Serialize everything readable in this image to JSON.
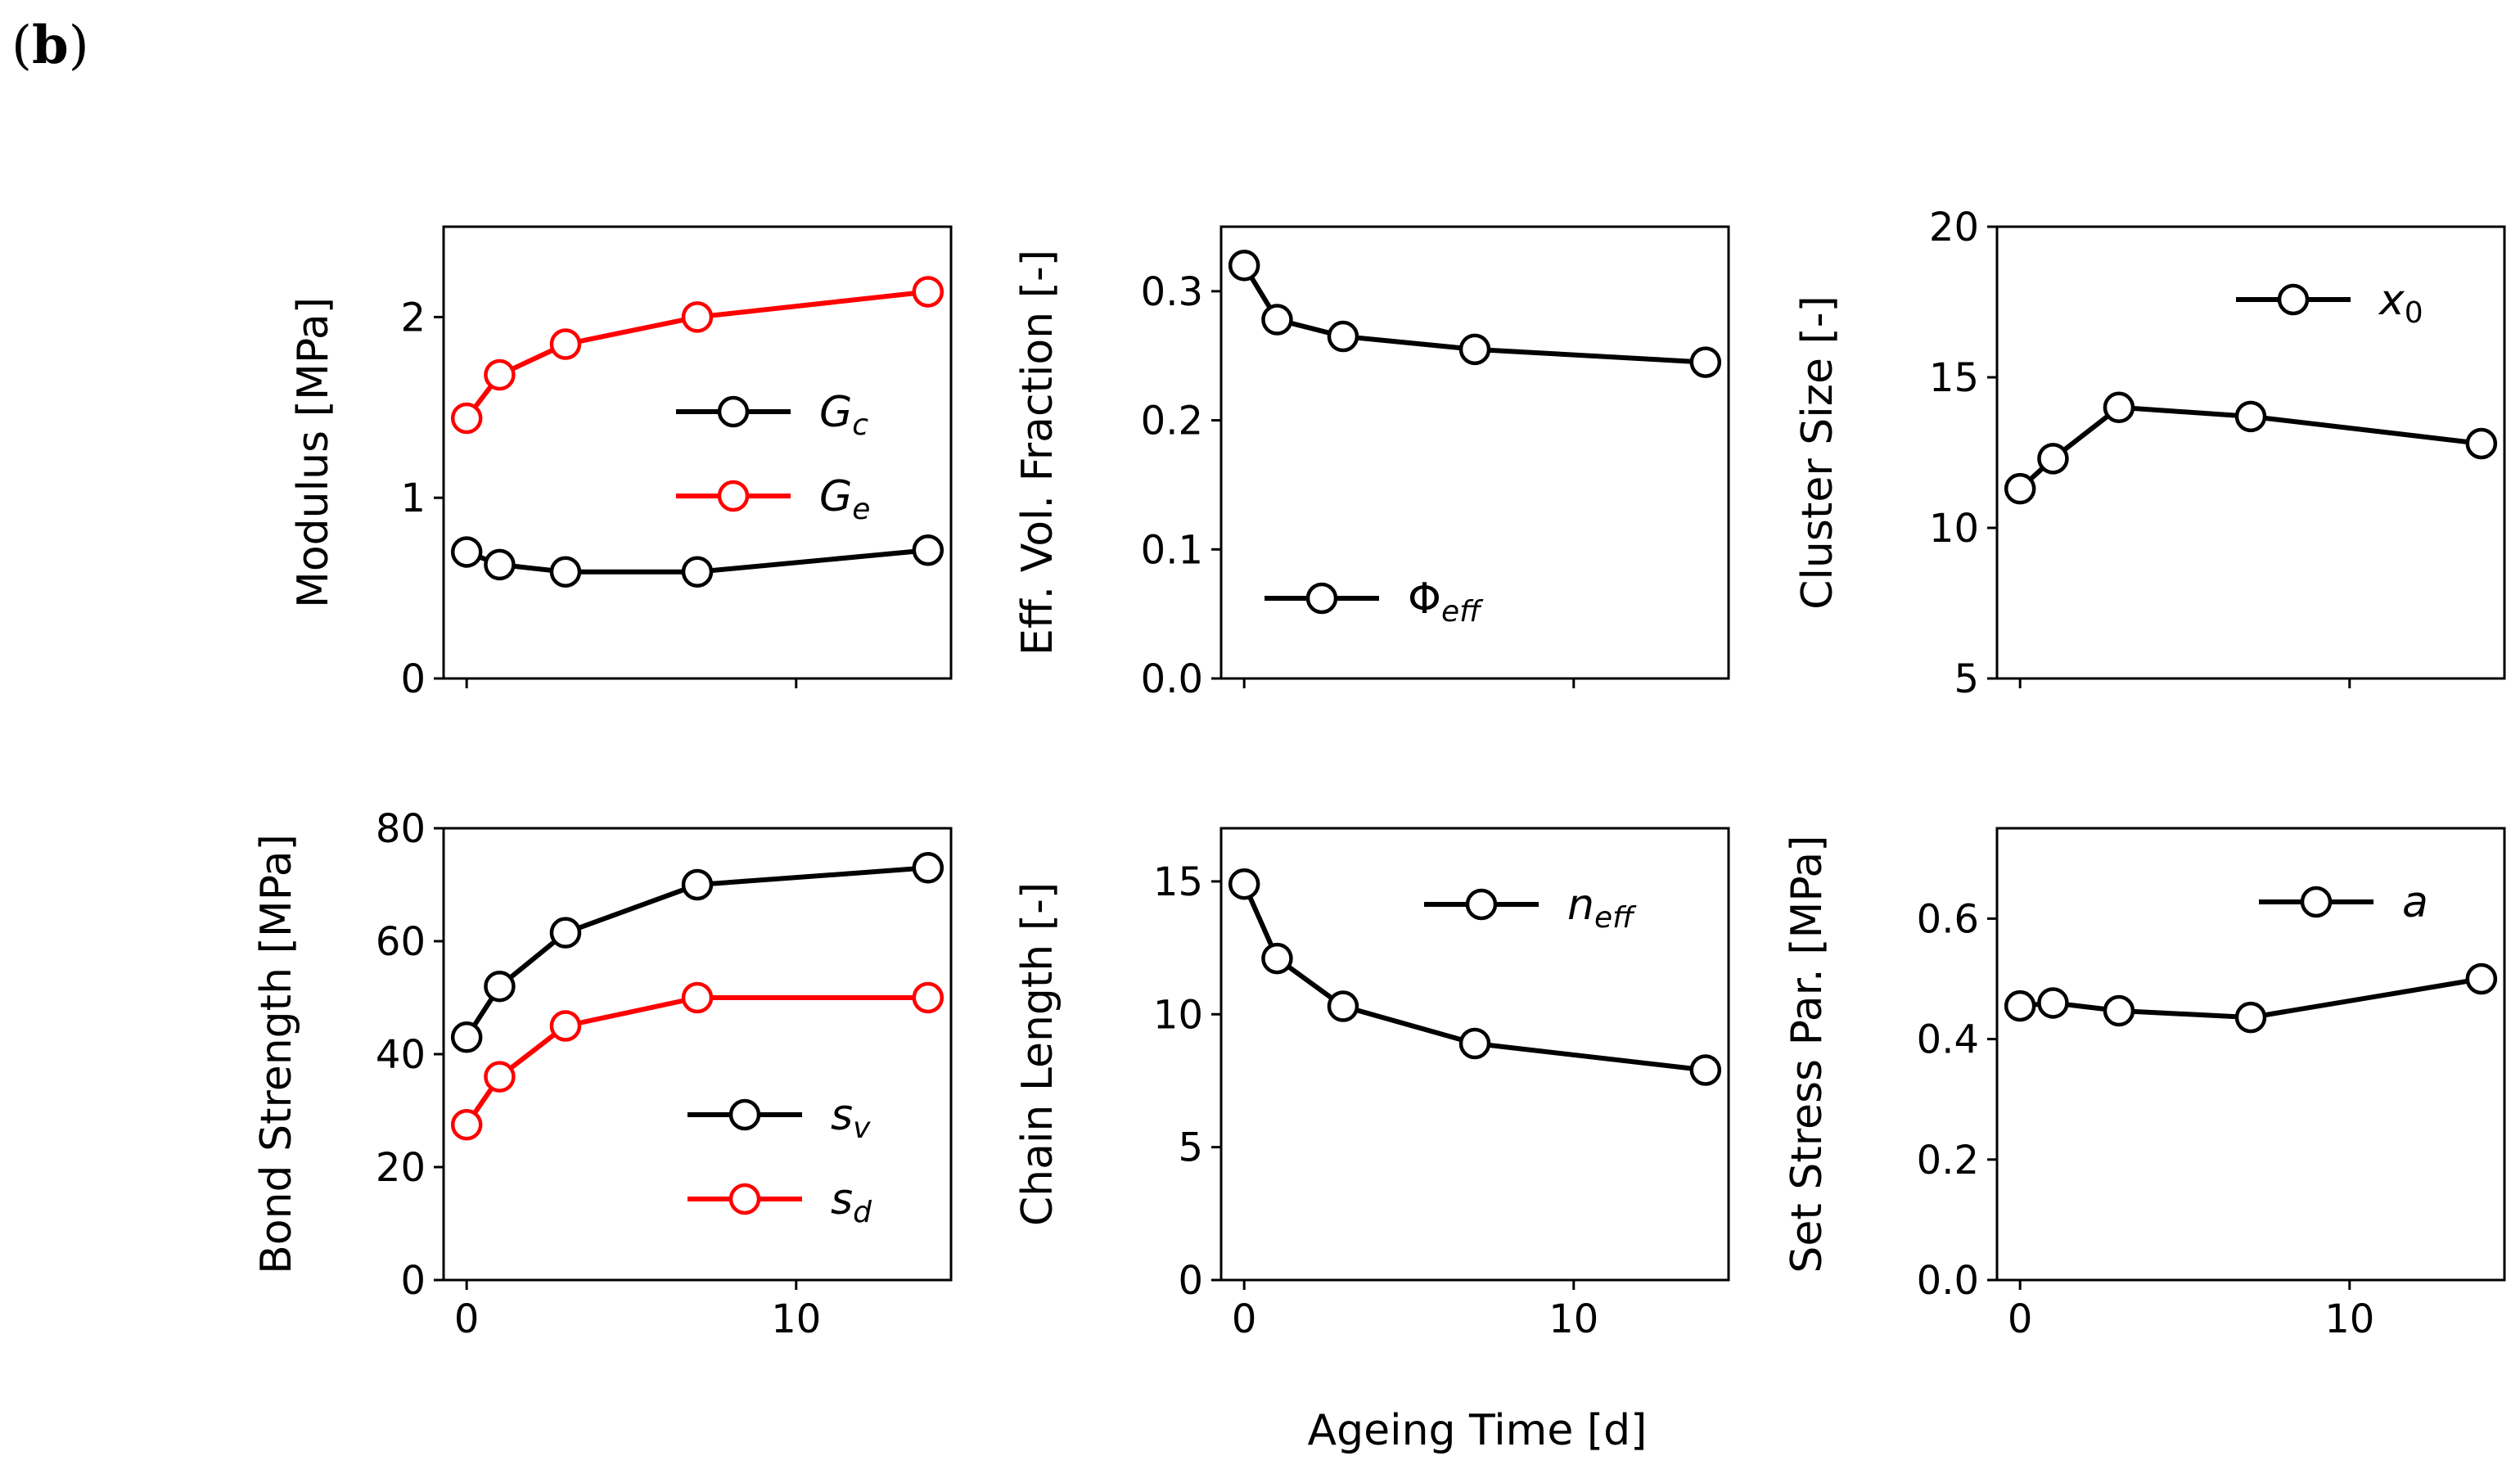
{
  "panel_label": {
    "open": "(",
    "letter": "b",
    "close": ")"
  },
  "shared_xlabel": "Ageing Time [d]",
  "chart_data": [
    {
      "type": "line",
      "ylabel": "Modulus [MPa]",
      "xlim": [
        -0.7,
        14.7
      ],
      "ylim": [
        0,
        2.5
      ],
      "yticks": [
        0,
        1,
        2
      ],
      "ytick_labels": [
        "0",
        "1",
        "2"
      ],
      "xticks": [
        0,
        10
      ],
      "xtick_labels": [],
      "legend_position": "center-right",
      "series": [
        {
          "name": "Gc",
          "symbol": "G",
          "sub": "c",
          "color": "#000000",
          "x": [
            0,
            1,
            3,
            7,
            14
          ],
          "y": [
            0.7,
            0.63,
            0.59,
            0.59,
            0.71
          ]
        },
        {
          "name": "Ge",
          "symbol": "G",
          "sub": "e",
          "color": "#ff0000",
          "x": [
            0,
            1,
            3,
            7,
            14
          ],
          "y": [
            1.44,
            1.68,
            1.85,
            2.0,
            2.14
          ]
        }
      ]
    },
    {
      "type": "line",
      "ylabel": "Eff. Vol. Fraction [-]",
      "xlim": [
        -0.7,
        14.7
      ],
      "ylim": [
        0,
        0.35
      ],
      "yticks": [
        0,
        0.1,
        0.2,
        0.3
      ],
      "ytick_labels": [
        "0.0",
        "0.1",
        "0.2",
        "0.3"
      ],
      "xticks": [
        0,
        10
      ],
      "xtick_labels": [],
      "legend_position": "lower-left",
      "series": [
        {
          "name": "Φeff",
          "symbol": "Φ",
          "sub": "eff",
          "color": "#000000",
          "x": [
            0,
            1,
            3,
            7,
            14
          ],
          "y": [
            0.32,
            0.278,
            0.265,
            0.255,
            0.245
          ]
        }
      ]
    },
    {
      "type": "line",
      "ylabel": "Cluster Size [-]",
      "xlim": [
        -0.7,
        14.7
      ],
      "ylim": [
        5,
        20
      ],
      "yticks": [
        5,
        10,
        15,
        20
      ],
      "ytick_labels": [
        "5",
        "10",
        "15",
        "20"
      ],
      "xticks": [
        0,
        10
      ],
      "xtick_labels": [],
      "legend_position": "upper-right",
      "series": [
        {
          "name": "x0",
          "symbol": "x",
          "sub": "0",
          "color": "#000000",
          "x": [
            0,
            1,
            3,
            7,
            14
          ],
          "y": [
            11.3,
            12.3,
            14.0,
            13.7,
            12.8
          ]
        }
      ]
    },
    {
      "type": "line",
      "ylabel": "Bond Strength [MPa]",
      "xlim": [
        -0.7,
        14.7
      ],
      "ylim": [
        0,
        80
      ],
      "yticks": [
        0,
        20,
        40,
        60,
        80
      ],
      "ytick_labels": [
        "0",
        "20",
        "40",
        "60",
        "80"
      ],
      "xticks": [
        0,
        10
      ],
      "xtick_labels": [
        "0",
        "10"
      ],
      "legend_position": "lower-right",
      "series": [
        {
          "name": "sv",
          "symbol": "s",
          "sub": "v",
          "color": "#000000",
          "x": [
            0,
            1,
            3,
            7,
            14
          ],
          "y": [
            43,
            52,
            61.5,
            70,
            73
          ]
        },
        {
          "name": "sd",
          "symbol": "s",
          "sub": "d",
          "color": "#ff0000",
          "x": [
            0,
            1,
            3,
            7,
            14
          ],
          "y": [
            27.5,
            36,
            45,
            50,
            50
          ]
        }
      ]
    },
    {
      "type": "line",
      "ylabel": "Chain Length [-]",
      "xlim": [
        -0.7,
        14.7
      ],
      "ylim": [
        0,
        17
      ],
      "yticks": [
        0,
        5,
        10,
        15
      ],
      "ytick_labels": [
        "0",
        "5",
        "10",
        "15"
      ],
      "xticks": [
        0,
        10
      ],
      "xtick_labels": [
        "0",
        "10"
      ],
      "legend_position": "upper-right",
      "series": [
        {
          "name": "neff",
          "symbol": "n",
          "sub": "eff",
          "color": "#000000",
          "x": [
            0,
            1,
            3,
            7,
            14
          ],
          "y": [
            14.9,
            12.1,
            10.3,
            8.9,
            7.9
          ]
        }
      ]
    },
    {
      "type": "line",
      "ylabel": "Set Stress Par. [MPa]",
      "xlim": [
        -0.7,
        14.7
      ],
      "ylim": [
        0,
        0.75
      ],
      "yticks": [
        0,
        0.2,
        0.4,
        0.6
      ],
      "ytick_labels": [
        "0.0",
        "0.2",
        "0.4",
        "0.6"
      ],
      "xticks": [
        0,
        10
      ],
      "xtick_labels": [
        "0",
        "10"
      ],
      "legend_position": "upper-right",
      "series": [
        {
          "name": "a",
          "symbol": "a",
          "sub": "",
          "color": "#000000",
          "x": [
            0,
            1,
            3,
            7,
            14
          ],
          "y": [
            0.455,
            0.46,
            0.447,
            0.436,
            0.5
          ]
        }
      ]
    }
  ]
}
